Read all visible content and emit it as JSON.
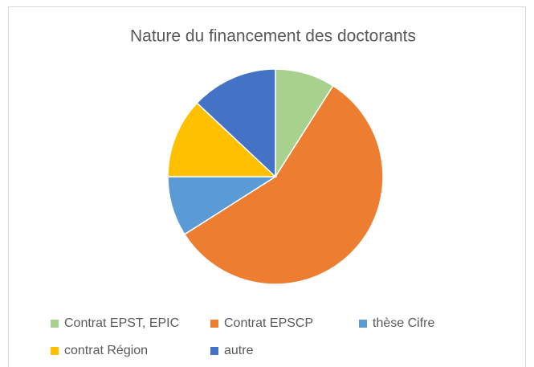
{
  "chart_data": {
    "type": "pie",
    "title": "Nature du financement des doctorants",
    "categories": [
      "Contrat EPST, EPIC",
      "Contrat EPSCP",
      "thèse Cifre",
      "contrat Région",
      "autre"
    ],
    "values": [
      9,
      57,
      9,
      12,
      13
    ],
    "colors": [
      "#a9d18e",
      "#ed7d31",
      "#5b9bd5",
      "#ffc000",
      "#4472c4"
    ],
    "legend": "bottom"
  }
}
